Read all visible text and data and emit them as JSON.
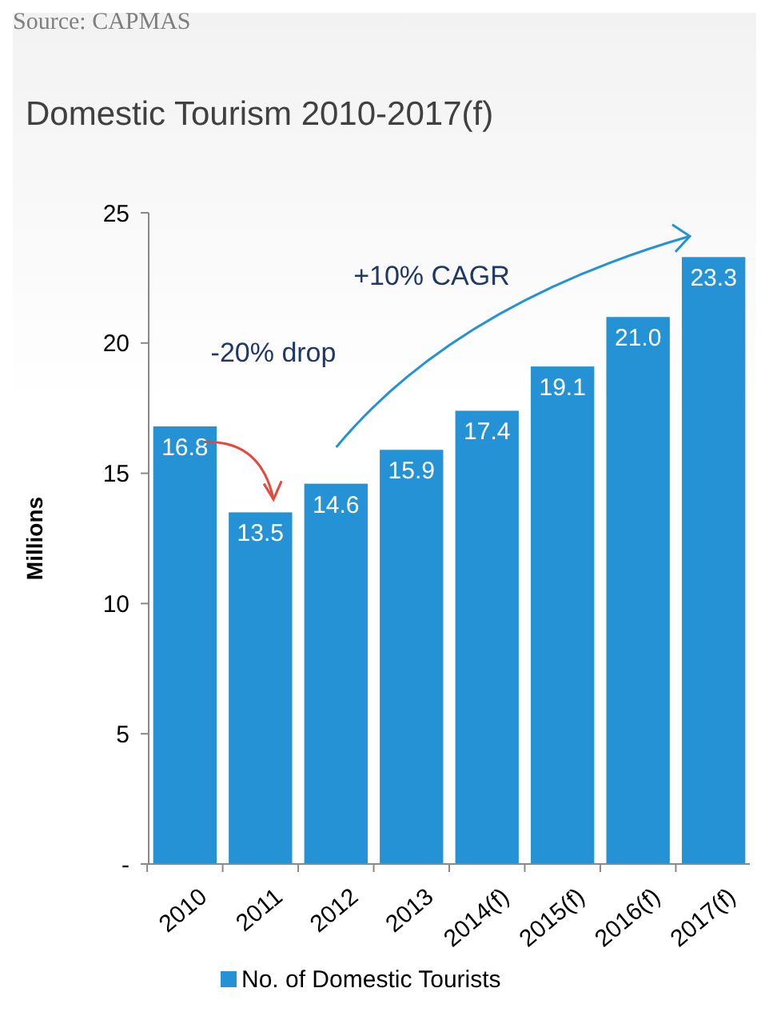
{
  "chart_data": {
    "type": "bar",
    "title": "Domestic Tourism 2010-2017(f)",
    "ylabel": "Millions",
    "categories": [
      "2010",
      "2011",
      "2012",
      "2013",
      "2014(f)",
      "2015(f)",
      "2016(f)",
      "2017(f)"
    ],
    "series": [
      {
        "name": "No. of Domestic Tourists",
        "color": "#2492d4",
        "values": [
          16.8,
          13.5,
          14.6,
          15.9,
          17.4,
          19.1,
          21.0,
          23.3
        ]
      }
    ],
    "value_labels": [
      "16.8",
      "13.5",
      "14.6",
      "15.9",
      "17.4",
      "19.1",
      "21.0",
      "23.3"
    ],
    "ylim": [
      0,
      25
    ],
    "yticks": [
      {
        "value": 0,
        "label": "-"
      },
      5,
      10,
      15,
      20,
      25
    ],
    "grid": false,
    "legend": "bottom",
    "annotations": [
      "Source: CAPMAS",
      "-20% drop",
      "+10% CAGR"
    ]
  }
}
